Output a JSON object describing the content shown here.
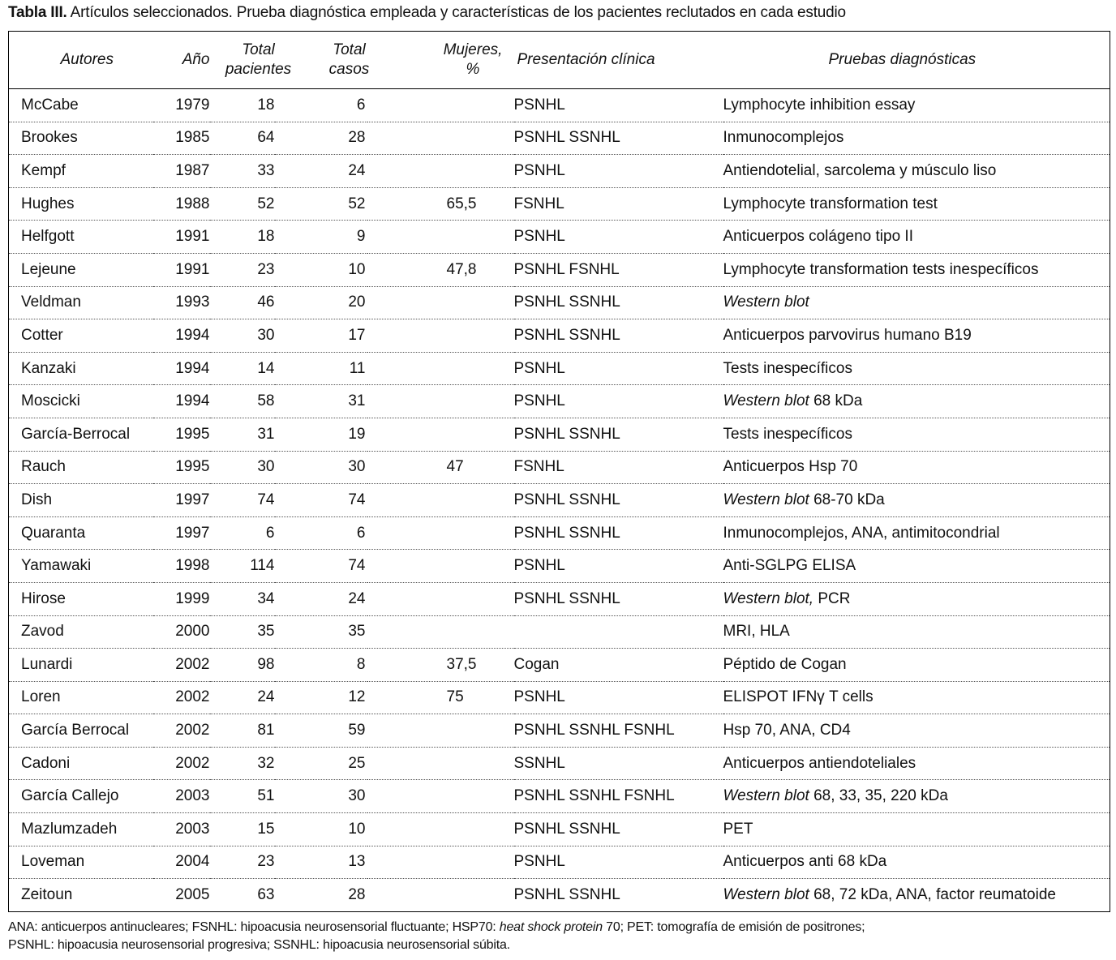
{
  "caption": {
    "label": "Tabla III.",
    "text": " Artículos seleccionados. Prueba diagnóstica empleada y características de los pacientes reclutados en cada estudio"
  },
  "headers": {
    "autores": "Autores",
    "anio": "Año",
    "total_pacientes_1": "Total",
    "total_pacientes_2": "pacientes",
    "total_casos_1": "Total",
    "total_casos_2": "casos",
    "mujeres_1": "Mujeres,",
    "mujeres_2": "%",
    "presentacion": "Presentación clínica",
    "pruebas": "Pruebas diagnósticas"
  },
  "rows": [
    {
      "autor": "McCabe",
      "anio": "1979",
      "pacientes": "18",
      "casos": "6",
      "mujeres": "",
      "presentacion": "PSNHL",
      "pruebas_italic": "",
      "pruebas": "Lymphocyte inhibition essay"
    },
    {
      "autor": "Brookes",
      "anio": "1985",
      "pacientes": "64",
      "casos": "28",
      "mujeres": "",
      "presentacion": "PSNHL SSNHL",
      "pruebas_italic": "",
      "pruebas": "Inmunocomplejos"
    },
    {
      "autor": "Kempf",
      "anio": "1987",
      "pacientes": "33",
      "casos": "24",
      "mujeres": "",
      "presentacion": "PSNHL",
      "pruebas_italic": "",
      "pruebas": "Antiendotelial, sarcolema y músculo liso"
    },
    {
      "autor": "Hughes",
      "anio": "1988",
      "pacientes": "52",
      "casos": "52",
      "mujeres": "65,5",
      "presentacion": "FSNHL",
      "pruebas_italic": "",
      "pruebas": "Lymphocyte transformation test"
    },
    {
      "autor": "Helfgott",
      "anio": "1991",
      "pacientes": "18",
      "casos": "9",
      "mujeres": "",
      "presentacion": "PSNHL",
      "pruebas_italic": "",
      "pruebas": "Anticuerpos colágeno tipo II"
    },
    {
      "autor": "Lejeune",
      "anio": "1991",
      "pacientes": "23",
      "casos": "10",
      "mujeres": "47,8",
      "presentacion": "PSNHL FSNHL",
      "pruebas_italic": "",
      "pruebas": "Lymphocyte transformation tests inespecíficos"
    },
    {
      "autor": "Veldman",
      "anio": "1993",
      "pacientes": "46",
      "casos": "20",
      "mujeres": "",
      "presentacion": "PSNHL SSNHL",
      "pruebas_italic": "Western blot",
      "pruebas": ""
    },
    {
      "autor": "Cotter",
      "anio": "1994",
      "pacientes": "30",
      "casos": "17",
      "mujeres": "",
      "presentacion": "PSNHL SSNHL",
      "pruebas_italic": "",
      "pruebas": "Anticuerpos parvovirus humano B19"
    },
    {
      "autor": "Kanzaki",
      "anio": "1994",
      "pacientes": "14",
      "casos": "11",
      "mujeres": "",
      "presentacion": "PSNHL",
      "pruebas_italic": "",
      "pruebas": "Tests inespecíficos"
    },
    {
      "autor": "Moscicki",
      "anio": "1994",
      "pacientes": "58",
      "casos": "31",
      "mujeres": "",
      "presentacion": "PSNHL",
      "pruebas_italic": "Western blot",
      "pruebas": " 68 kDa"
    },
    {
      "autor": "García-Berrocal",
      "anio": "1995",
      "pacientes": "31",
      "casos": "19",
      "mujeres": "",
      "presentacion": "PSNHL SSNHL",
      "pruebas_italic": "",
      "pruebas": "Tests inespecíficos"
    },
    {
      "autor": "Rauch",
      "anio": "1995",
      "pacientes": "30",
      "casos": "30",
      "mujeres": "47",
      "presentacion": "FSNHL",
      "pruebas_italic": "",
      "pruebas": "Anticuerpos Hsp 70"
    },
    {
      "autor": "Dish",
      "anio": "1997",
      "pacientes": "74",
      "casos": "74",
      "mujeres": "",
      "presentacion": "PSNHL SSNHL",
      "pruebas_italic": "Western blot",
      "pruebas": " 68-70 kDa"
    },
    {
      "autor": "Quaranta",
      "anio": "1997",
      "pacientes": "6",
      "casos": "6",
      "mujeres": "",
      "presentacion": "PSNHL SSNHL",
      "pruebas_italic": "",
      "pruebas": "Inmunocomplejos, ANA, antimitocondrial"
    },
    {
      "autor": "Yamawaki",
      "anio": "1998",
      "pacientes": "114",
      "casos": "74",
      "mujeres": "",
      "presentacion": "PSNHL",
      "pruebas_italic": "",
      "pruebas": "Anti-SGLPG ELISA"
    },
    {
      "autor": "Hirose",
      "anio": "1999",
      "pacientes": "34",
      "casos": "24",
      "mujeres": "",
      "presentacion": "PSNHL SSNHL",
      "pruebas_italic": "Western blot,",
      "pruebas": " PCR"
    },
    {
      "autor": "Zavod",
      "anio": "2000",
      "pacientes": "35",
      "casos": "35",
      "mujeres": "",
      "presentacion": "",
      "pruebas_italic": "",
      "pruebas": "MRI, HLA"
    },
    {
      "autor": "Lunardi",
      "anio": "2002",
      "pacientes": "98",
      "casos": "8",
      "mujeres": "37,5",
      "presentacion": "Cogan",
      "pruebas_italic": "",
      "pruebas": "Péptido de Cogan"
    },
    {
      "autor": "Loren",
      "anio": "2002",
      "pacientes": "24",
      "casos": "12",
      "mujeres": "75",
      "presentacion": "PSNHL",
      "pruebas_italic": "",
      "pruebas": "ELISPOT IFNγ T cells"
    },
    {
      "autor": "García Berrocal",
      "anio": "2002",
      "pacientes": "81",
      "casos": "59",
      "mujeres": "",
      "presentacion": "PSNHL SSNHL FSNHL",
      "pruebas_italic": "",
      "pruebas": "Hsp 70, ANA, CD4"
    },
    {
      "autor": "Cadoni",
      "anio": "2002",
      "pacientes": "32",
      "casos": "25",
      "mujeres": "",
      "presentacion": "SSNHL",
      "pruebas_italic": "",
      "pruebas": "Anticuerpos antiendoteliales"
    },
    {
      "autor": "García Callejo",
      "anio": "2003",
      "pacientes": "51",
      "casos": "30",
      "mujeres": "",
      "presentacion": "PSNHL SSNHL FSNHL",
      "pruebas_italic": "Western blot",
      "pruebas": " 68, 33, 35, 220 kDa"
    },
    {
      "autor": "Mazlumzadeh",
      "anio": "2003",
      "pacientes": "15",
      "casos": "10",
      "mujeres": "",
      "presentacion": "PSNHL SSNHL",
      "pruebas_italic": "",
      "pruebas": "PET"
    },
    {
      "autor": "Loveman",
      "anio": "2004",
      "pacientes": "23",
      "casos": "13",
      "mujeres": "",
      "presentacion": "PSNHL",
      "pruebas_italic": "",
      "pruebas": "Anticuerpos anti 68 kDa"
    },
    {
      "autor": "Zeitoun",
      "anio": "2005",
      "pacientes": "63",
      "casos": "28",
      "mujeres": "",
      "presentacion": "PSNHL SSNHL",
      "pruebas_italic": "Western blot",
      "pruebas": " 68, 72 kDa, ANA, factor reumatoide"
    }
  ],
  "footnote": {
    "part1": "ANA: anticuerpos antinucleares; FSNHL: hipoacusia neurosensorial fluctuante; HSP70: ",
    "part2_italic": "heat shock protein",
    "part3": " 70; PET: tomografía de emisión de positrones;",
    "line2": "PSNHL: hipoacusia neurosensorial progresiva; SSNHL: hipoacusia neurosensorial súbita."
  }
}
